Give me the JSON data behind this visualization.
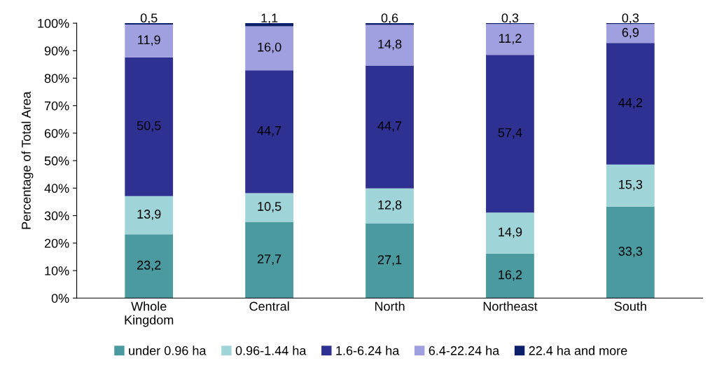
{
  "chart_data": {
    "type": "bar",
    "stacked": true,
    "ylabel": "Percentage of Total Area",
    "categories": [
      "Whole\nKingdom",
      "Central",
      "North",
      "Northeast",
      "South"
    ],
    "series": [
      {
        "name": "under 0.96 ha",
        "color": "#4a9aa0",
        "values": [
          23.2,
          27.7,
          27.1,
          16.2,
          33.3
        ],
        "value_labels": [
          "23,2",
          "27,7",
          "27,1",
          "16,2",
          "33,3"
        ]
      },
      {
        "name": "0.96-1.44 ha",
        "color": "#9fd5d8",
        "values": [
          13.9,
          10.5,
          12.8,
          14.9,
          15.3
        ],
        "value_labels": [
          "13,9",
          "10,5",
          "12,8",
          "14,9",
          "15,3"
        ]
      },
      {
        "name": "1.6-6.24 ha",
        "color": "#2e3192",
        "values": [
          50.5,
          44.7,
          44.7,
          57.4,
          44.2
        ],
        "value_labels": [
          "50,5",
          "44,7",
          "44,7",
          "57,4",
          "44,2"
        ]
      },
      {
        "name": "6.4-22.24 ha",
        "color": "#a09fe0",
        "values": [
          11.9,
          16.0,
          14.8,
          11.2,
          6.9
        ],
        "value_labels": [
          "11,9",
          "16,0",
          "14,8",
          "11,2",
          "6,9"
        ]
      },
      {
        "name": "22.4 ha and more",
        "color": "#0b1f6b",
        "values": [
          0.5,
          1.1,
          0.6,
          0.3,
          0.3
        ],
        "value_labels": [
          "0,5",
          "1,1",
          "0,6",
          "0,3",
          "0,3"
        ]
      }
    ],
    "ylim": [
      0,
      100
    ],
    "yticks": [
      {
        "value": 0,
        "label": "0%"
      },
      {
        "value": 10,
        "label": "10%"
      },
      {
        "value": 20,
        "label": "20%"
      },
      {
        "value": 30,
        "label": "30%"
      },
      {
        "value": 40,
        "label": "40%"
      },
      {
        "value": 50,
        "label": "50%"
      },
      {
        "value": 60,
        "label": "60%"
      },
      {
        "value": 70,
        "label": "70%"
      },
      {
        "value": 80,
        "label": "80%"
      },
      {
        "value": 90,
        "label": "90%"
      },
      {
        "value": 100,
        "label": "100%"
      }
    ],
    "grid": false,
    "legend": "bottom"
  }
}
